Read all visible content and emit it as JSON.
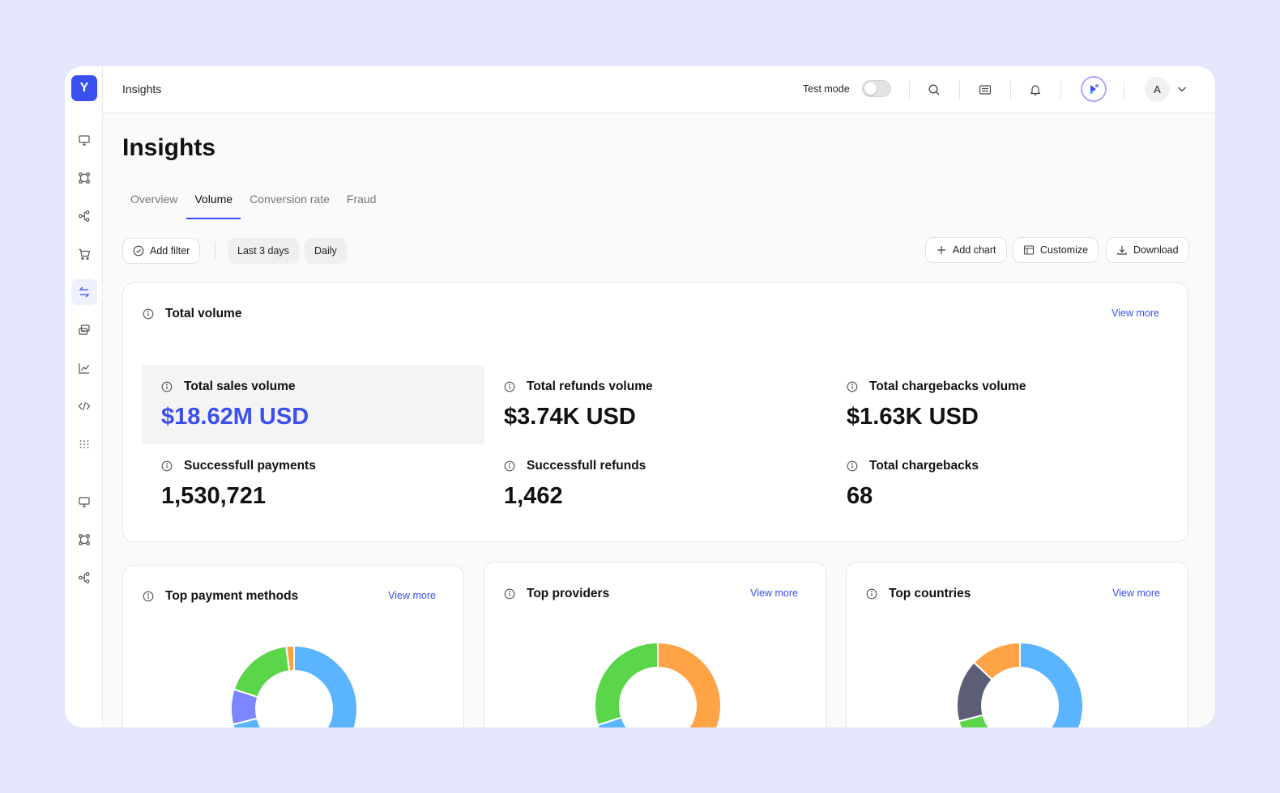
{
  "app": {
    "logo_glyph": "Y",
    "breadcrumb": "Insights",
    "test_mode_label": "Test mode",
    "test_mode_on": false,
    "user_initial": "A"
  },
  "sidebar": {
    "items": [
      {
        "icon": "monitor-icon"
      },
      {
        "icon": "workflow-icon"
      },
      {
        "icon": "connections-icon"
      },
      {
        "icon": "cart-icon"
      },
      {
        "icon": "transactions-icon",
        "active": true
      },
      {
        "icon": "payouts-icon"
      },
      {
        "icon": "insights-icon"
      },
      {
        "icon": "code-icon"
      },
      {
        "icon": "apps-grid-icon"
      },
      {
        "icon": "monitor-icon"
      },
      {
        "icon": "workflow-icon"
      },
      {
        "icon": "connections-icon"
      }
    ]
  },
  "page": {
    "title": "Insights",
    "tabs": [
      {
        "label": "Overview",
        "active": false
      },
      {
        "label": "Volume",
        "active": true
      },
      {
        "label": "Conversion rate",
        "active": false
      },
      {
        "label": "Fraud",
        "active": false
      }
    ]
  },
  "toolbar": {
    "add_filter": "Add filter",
    "date_range": "Last 3 days",
    "granularity": "Daily",
    "add_chart": "Add chart",
    "customize": "Customize",
    "download": "Download"
  },
  "total_volume": {
    "title": "Total volume",
    "view_more": "View more",
    "metrics": [
      {
        "label": "Total sales volume",
        "value": "$18.62M USD",
        "highlighted": true
      },
      {
        "label": "Total refunds volume",
        "value": "$3.74K USD"
      },
      {
        "label": "Total chargebacks volume",
        "value": "$1.63K USD"
      },
      {
        "label": "Successfull payments",
        "value": "1,530,721"
      },
      {
        "label": "Successfull refunds",
        "value": "1,462"
      },
      {
        "label": "Total chargebacks",
        "value": "68"
      }
    ]
  },
  "cards": {
    "payment_methods": {
      "title": "Top payment methods",
      "view_more": "View more"
    },
    "providers": {
      "title": "Top providers",
      "view_more": "View more"
    },
    "countries": {
      "title": "Top countries",
      "view_more": "View more"
    }
  },
  "colors": {
    "accent": "#3a4ff0",
    "blue": "#5ab4ff",
    "orange": "#ffa347",
    "green": "#5bd64a",
    "purple": "#7b86ff",
    "slate": "#5b5e75"
  },
  "chart_data": [
    {
      "type": "pie",
      "title": "Top payment methods",
      "slices": [
        {
          "value": 71,
          "color": "#5ab4ff"
        },
        {
          "value": 9,
          "color": "#7b86ff"
        },
        {
          "value": 18,
          "color": "#5bd64a"
        },
        {
          "value": 2,
          "color": "#ffa347"
        }
      ]
    },
    {
      "type": "pie",
      "title": "Top providers",
      "slices": [
        {
          "value": 44,
          "color": "#ffa347"
        },
        {
          "value": 26,
          "color": "#5ab4ff"
        },
        {
          "value": 30,
          "color": "#5bd64a"
        }
      ]
    },
    {
      "type": "pie",
      "title": "Top countries",
      "slices": [
        {
          "value": 47,
          "color": "#5ab4ff"
        },
        {
          "value": 24,
          "color": "#5bd64a"
        },
        {
          "value": 16,
          "color": "#5b5e75"
        },
        {
          "value": 13,
          "color": "#ffa347"
        }
      ]
    }
  ]
}
